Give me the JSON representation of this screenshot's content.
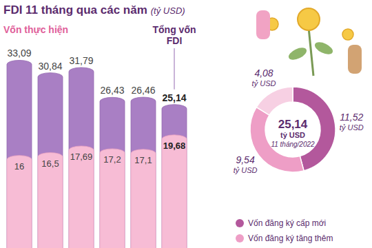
{
  "chart_data": [
    {
      "type": "bar",
      "title": "FDI 11 tháng qua các năm",
      "subtitle": "(tỷ USD)",
      "categories": [
        null,
        null,
        null,
        null,
        null,
        null
      ],
      "series": [
        {
          "name": "Tổng vốn FDI",
          "color": "#a97fc4",
          "values": [
            33.09,
            30.84,
            31.79,
            26.43,
            26.46,
            25.14
          ],
          "value_labels": [
            "33,09",
            "30,84",
            "31,79",
            "26,43",
            "26,46",
            "25,14"
          ]
        },
        {
          "name": "Vốn thực hiện",
          "color": "#f7bcd5",
          "values": [
            16,
            16.5,
            17.69,
            17.2,
            17.1,
            19.68
          ],
          "value_labels": [
            "16",
            "16,5",
            "17,69",
            "17,2",
            "17,1",
            "19,68"
          ]
        }
      ],
      "ylim": [
        0,
        35
      ],
      "stacked": false,
      "grid": false,
      "tick_labels": false,
      "data_labels": true
    },
    {
      "type": "pie",
      "categories": [
        "Vốn đăng ký cấp mới",
        "Vốn đăng ký tăng thêm",
        null
      ],
      "values": [
        11.52,
        9.54,
        4.08
      ],
      "value_labels": [
        "11,52",
        "9,54",
        "4,08"
      ],
      "unit": "tỷ USD",
      "colors": [
        "#b3589c",
        "#ee9ec6",
        "#f7d0e3"
      ],
      "center_label": "25,14",
      "center_caption": "11 tháng/2022",
      "data_labels": true,
      "legend": "bottom"
    }
  ]
}
